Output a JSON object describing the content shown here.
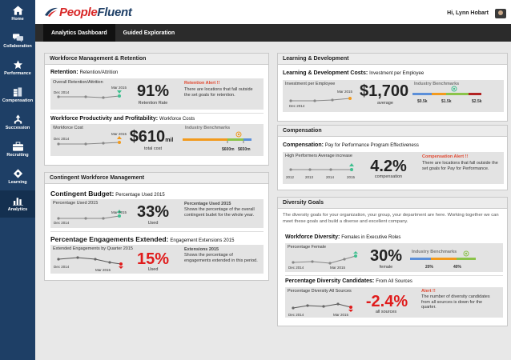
{
  "app": {
    "brand_red": "People",
    "brand_blue": "Fluent",
    "user": "Hi, Lynn Hobart"
  },
  "sidebar": {
    "items": [
      {
        "label": "Home",
        "icon": "home-icon"
      },
      {
        "label": "Collaboration",
        "icon": "chat-icon"
      },
      {
        "label": "Performance",
        "icon": "star-icon"
      },
      {
        "label": "Compensation",
        "icon": "coins-icon"
      },
      {
        "label": "Succession",
        "icon": "succession-icon"
      },
      {
        "label": "Recruiting",
        "icon": "briefcase-icon"
      },
      {
        "label": "Learning",
        "icon": "learning-icon"
      },
      {
        "label": "Analytics",
        "icon": "bar-chart-icon",
        "active": true
      }
    ]
  },
  "tabs": [
    {
      "label": "Analytics Dashboard",
      "active": true
    },
    {
      "label": "Guided Exploration",
      "active": false
    }
  ],
  "workforce": {
    "header": "Workforce Management & Retention",
    "retention": {
      "title": "Retention:",
      "subtitle": "Retention/Attrition",
      "card_label": "Overall Retention/Attrition",
      "x_start": "Dec 2014",
      "x_end": "Mar 2015",
      "value": "91%",
      "caption": "Retention Rate",
      "alert_title": "Retention Alert !!",
      "alert_body": "There are locations that fall outside the set goals for retention."
    },
    "productivity": {
      "title": "Workforce Productivity and Profitability:",
      "subtitle": "Workforce Costs",
      "card_label": "Workforce Cost",
      "x_start": "Dec 2014",
      "x_end": "Mar 2015",
      "value": "$610",
      "unit": "mil",
      "caption": "total cost",
      "bench_title": "Industry Benchmarks",
      "bench_low": "$600m",
      "bench_high": "$650m"
    }
  },
  "contingent": {
    "header": "Contingent Workforce Management",
    "budget": {
      "title": "Contingent Budget:",
      "subtitle": "Percentage Used 2015",
      "card_label": "Percentage Used 2015",
      "x_start": "Dec 2014",
      "x_end": "Mar 2015",
      "value": "33%",
      "caption": "Used",
      "note_title": "Percentage Used 2015",
      "note_body": "Shows the percentage of the overall contingent budet for the whole year."
    },
    "engagements": {
      "title": "Percentage Engagements Extended:",
      "subtitle": "Engagement Extensions 2015",
      "card_label": "Extended Engagements by Quarter 2015",
      "x_start": "Dec 2014",
      "x_end": "Mar 2015",
      "value": "15%",
      "caption": "Used",
      "note_title": "Extensions 2015",
      "note_body": "Shows the percentage of engagements extended in this period."
    }
  },
  "learning": {
    "header": "Learning & Development",
    "title": "Learning & Development Costs:",
    "subtitle": "Investment per Employee",
    "card_label": "Investment per Employee",
    "x_start": "Dec 2014",
    "x_end": "Mar 2015",
    "value": "$1,700",
    "caption": "average",
    "bench_title": "Industry Benchmarks",
    "bench_a": "$0.5k",
    "bench_b": "$1.5k",
    "bench_c": "$2.5k"
  },
  "compensation": {
    "header": "Compensation",
    "title": "Compensation:",
    "subtitle": "Pay for Performance Program Effectiveness",
    "card_label": "High Performers Average increase",
    "x_labels": [
      "2012",
      "2013",
      "2014",
      "2015"
    ],
    "value": "4.2%",
    "caption": "compensation",
    "alert_title": "Compensation Alert !!",
    "alert_body": "There are locations that fall outside the set goals for Pay for Performance."
  },
  "diversity": {
    "header": "Diversity Goals",
    "description": "The diversity goals for your organization, your group, your department are here. Working together we can meet these goals and build a diverse and excellent company.",
    "females": {
      "title": "Workforce Diversity:",
      "subtitle": "Females in Executive Roles",
      "card_label": "Percentage Female",
      "x_start": "Dec 2014",
      "x_end": "Mar 2015",
      "value": "30%",
      "caption": "female",
      "bench_title": "Industry Benchmarks",
      "bench_a": "20%",
      "bench_b": "40%"
    },
    "candidates": {
      "title": "Percentage Diversity Candidates:",
      "subtitle": "From All Sources",
      "card_label": "Percentage Diversity All Sources",
      "x_start": "Dec 2014",
      "x_end": "Mar 2015",
      "value": "-2.4%",
      "caption": "all sources",
      "alert_title": "Alert !!",
      "alert_body": "The number of diversity candidates from all sources is down for the quarter."
    }
  },
  "colors": {
    "sidebar": "#1e3f66",
    "alert": "#e2472f",
    "negative": "#e01b1b",
    "positive": "#3fbf8f",
    "warning": "#f29a1d"
  }
}
